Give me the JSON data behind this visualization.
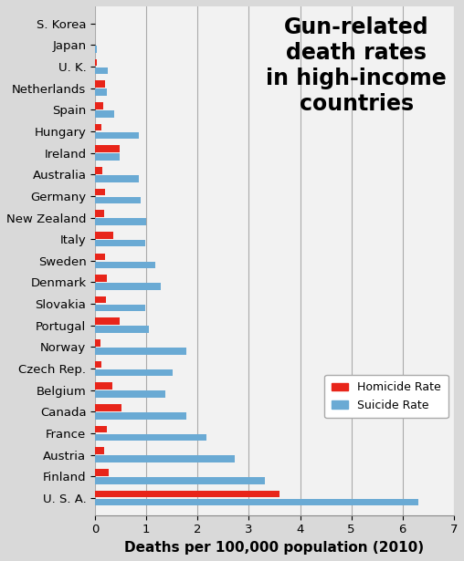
{
  "countries": [
    "U. S. A.",
    "Finland",
    "Austria",
    "France",
    "Canada",
    "Belgium",
    "Czech Rep.",
    "Norway",
    "Portugal",
    "Slovakia",
    "Denmark",
    "Sweden",
    "Italy",
    "New Zealand",
    "Germany",
    "Australia",
    "Ireland",
    "Hungary",
    "Spain",
    "Netherlands",
    "U. K.",
    "Japan",
    "S. Korea"
  ],
  "homicide": [
    3.6,
    0.26,
    0.18,
    0.22,
    0.51,
    0.33,
    0.12,
    0.1,
    0.48,
    0.21,
    0.22,
    0.19,
    0.36,
    0.18,
    0.19,
    0.14,
    0.48,
    0.13,
    0.15,
    0.2,
    0.04,
    0.0,
    0.0
  ],
  "suicide": [
    6.3,
    3.32,
    2.72,
    2.18,
    1.78,
    1.37,
    1.52,
    1.78,
    1.05,
    0.97,
    1.28,
    1.18,
    0.97,
    1.0,
    0.88,
    0.86,
    0.48,
    0.85,
    0.38,
    0.23,
    0.25,
    0.04,
    0.0
  ],
  "title": "Gun-related\ndeath rates\nin high-income\ncountries",
  "xlabel": "Deaths per 100,000 population (2010)",
  "xlim": [
    0,
    7
  ],
  "xticks": [
    0,
    1,
    2,
    3,
    4,
    5,
    6,
    7
  ],
  "homicide_color": "#e8251a",
  "suicide_color": "#6aaad4",
  "bg_color": "#d9d9d9",
  "plot_bg_color": "#f2f2f2",
  "legend_homicide": "Homicide Rate",
  "legend_suicide": "Suicide Rate",
  "bar_height": 0.32,
  "bar_gap": 0.06,
  "title_fontsize": 17,
  "label_fontsize": 11,
  "tick_fontsize": 9.5
}
